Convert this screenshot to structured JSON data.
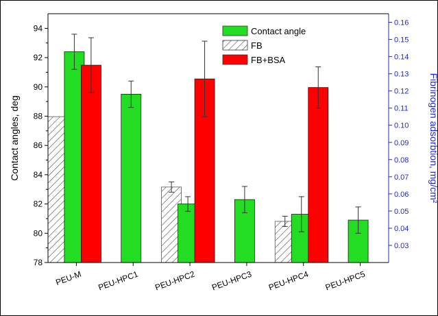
{
  "chart_data": {
    "type": "bar",
    "categories": [
      "PEU-M",
      "PEU-HPC1",
      "PEU-HPC2",
      "PEU-HPC3",
      "PEU-HPC4",
      "PEU-HPC5"
    ],
    "left_axis": {
      "label": "Contact angles, deg",
      "ylim": [
        78,
        95
      ],
      "ticks": [
        78,
        80,
        82,
        84,
        86,
        88,
        90,
        92,
        94
      ]
    },
    "right_axis": {
      "label": "Fibrinogen adsorbtion, mg/cm²",
      "ylim": [
        0.02,
        0.165
      ],
      "ticks": [
        "0.03",
        "0.04",
        "0.05",
        "0.06",
        "0.07",
        "0.08",
        "0.09",
        "0.10",
        "0.11",
        "0.12",
        "0.13",
        "0.14",
        "0.15",
        "0.16"
      ],
      "color": "#1f28c8"
    },
    "series": [
      {
        "name": "Contact angle",
        "axis": "left",
        "color": "#22dd22",
        "values": [
          92.4,
          89.5,
          82.0,
          82.3,
          81.3,
          80.9
        ],
        "errors": [
          1.2,
          0.9,
          0.5,
          0.9,
          1.2,
          0.9
        ]
      },
      {
        "name": "FB",
        "axis": "right",
        "pattern": "hatched",
        "values": [
          0.105,
          null,
          0.064,
          null,
          0.044,
          null
        ],
        "errors": [
          null,
          null,
          0.003,
          null,
          0.003,
          null
        ]
      },
      {
        "name": "FB+BSA",
        "axis": "right",
        "color": "#ff0000",
        "values": [
          0.135,
          null,
          0.127,
          null,
          0.122,
          null
        ],
        "errors": [
          0.016,
          null,
          0.022,
          null,
          0.012,
          null
        ]
      }
    ],
    "legend_position": "top-right",
    "grid": false
  }
}
